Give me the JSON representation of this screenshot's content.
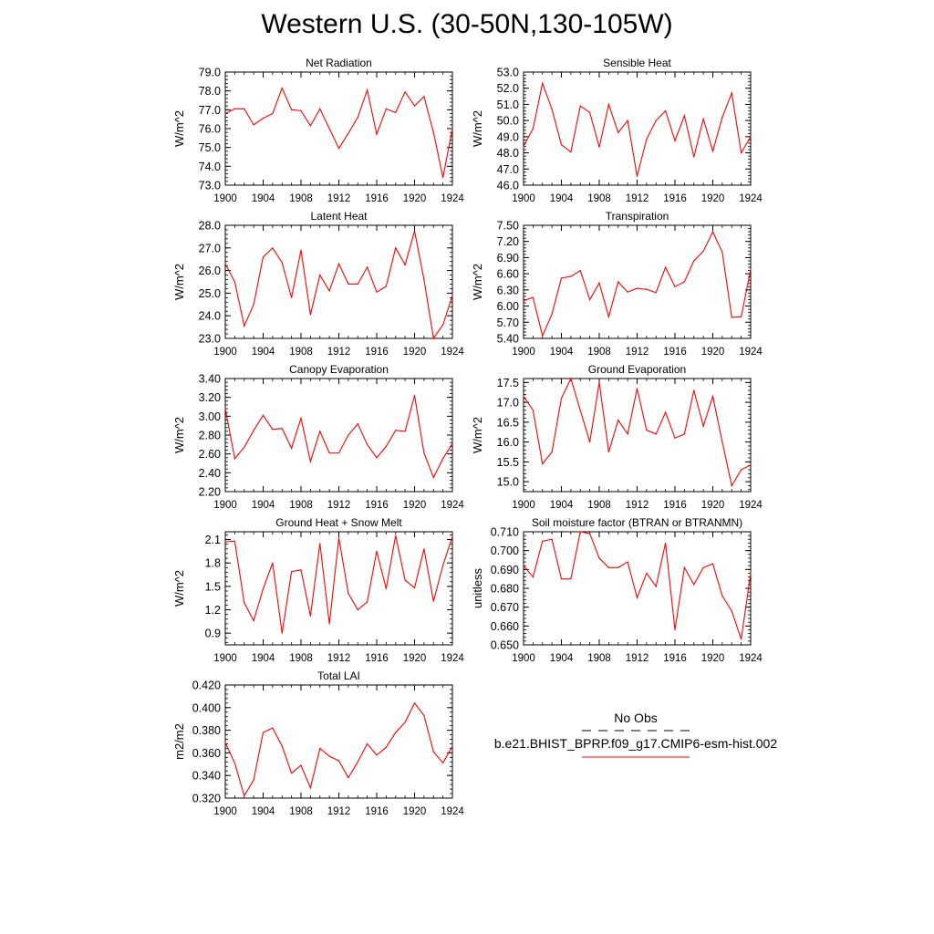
{
  "page": {
    "title": "Western U.S. (30-50N,130-105W)"
  },
  "legend": {
    "obs_label": "No Obs",
    "model_label": "b.e21.BHIST_BPRP.f09_g17.CMIP6-esm-hist.002",
    "obs_color": "#000000",
    "model_color": "#ff0000"
  },
  "chart_data": [
    {
      "type": "line",
      "title": "Net Radiation",
      "ylabel": "W/m^2",
      "xlim": [
        1900,
        1924
      ],
      "ylim": [
        73,
        79
      ],
      "xticks": [
        1900,
        1904,
        1908,
        1912,
        1916,
        1920,
        1924
      ],
      "xticklabels": [
        "1900",
        "1904",
        "1908",
        "1912",
        "1916",
        "1920",
        "1924"
      ],
      "yticks": [
        73,
        74,
        75,
        76,
        77,
        78,
        79
      ],
      "yticklabels": [
        "73.0",
        "74.0",
        "75.0",
        "76.0",
        "77.0",
        "78.0",
        "79.0"
      ],
      "series": [
        {
          "color": "#ff0000",
          "x": [
            1900,
            1901,
            1902,
            1903,
            1904,
            1905,
            1906,
            1907,
            1908,
            1909,
            1910,
            1911,
            1912,
            1913,
            1914,
            1915,
            1916,
            1917,
            1918,
            1919,
            1920,
            1921,
            1922,
            1923,
            1924
          ],
          "y": [
            76.8,
            77.05,
            77.05,
            76.2,
            76.55,
            76.8,
            78.15,
            77.0,
            76.95,
            76.15,
            77.05,
            76.0,
            74.95,
            75.75,
            76.6,
            78.05,
            75.7,
            77.05,
            76.85,
            77.95,
            77.2,
            77.7,
            75.8,
            73.4,
            76.0
          ]
        }
      ]
    },
    {
      "type": "line",
      "title": "Sensible Heat",
      "ylabel": "W/m^2",
      "xlim": [
        1900,
        1924
      ],
      "ylim": [
        46,
        53
      ],
      "xticks": [
        1900,
        1904,
        1908,
        1912,
        1916,
        1920,
        1924
      ],
      "xticklabels": [
        "1900",
        "1904",
        "1908",
        "1912",
        "1916",
        "1920",
        "1924"
      ],
      "yticks": [
        46,
        47,
        48,
        49,
        50,
        51,
        52,
        53
      ],
      "yticklabels": [
        "46.0",
        "47.0",
        "48.0",
        "49.0",
        "50.0",
        "51.0",
        "52.0",
        "53.0"
      ],
      "series": [
        {
          "color": "#ff0000",
          "x": [
            1900,
            1901,
            1902,
            1903,
            1904,
            1905,
            1906,
            1907,
            1908,
            1909,
            1910,
            1911,
            1912,
            1913,
            1914,
            1915,
            1916,
            1917,
            1918,
            1919,
            1920,
            1921,
            1922,
            1923,
            1924
          ],
          "y": [
            48.4,
            49.5,
            52.3,
            50.7,
            48.5,
            48.05,
            50.9,
            50.5,
            48.35,
            51.0,
            49.25,
            50.0,
            46.55,
            48.85,
            50.0,
            50.6,
            48.75,
            50.3,
            47.75,
            50.1,
            48.1,
            50.2,
            51.7,
            48.0,
            49.0
          ]
        }
      ]
    },
    {
      "type": "line",
      "title": "Latent Heat",
      "ylabel": "W/m^2",
      "xlim": [
        1900,
        1924
      ],
      "ylim": [
        23,
        28
      ],
      "xticks": [
        1900,
        1904,
        1908,
        1912,
        1916,
        1920,
        1924
      ],
      "xticklabels": [
        "1900",
        "1904",
        "1908",
        "1912",
        "1916",
        "1920",
        "1924"
      ],
      "yticks": [
        23,
        24,
        25,
        26,
        27,
        28
      ],
      "yticklabels": [
        "23.0",
        "24.0",
        "25.0",
        "26.0",
        "27.0",
        "28.0"
      ],
      "series": [
        {
          "color": "#ff0000",
          "x": [
            1900,
            1901,
            1902,
            1903,
            1904,
            1905,
            1906,
            1907,
            1908,
            1909,
            1910,
            1911,
            1912,
            1913,
            1914,
            1915,
            1916,
            1917,
            1918,
            1919,
            1920,
            1921,
            1922,
            1923,
            1924
          ],
          "y": [
            26.3,
            25.5,
            23.55,
            24.5,
            26.6,
            27.0,
            26.35,
            24.8,
            26.9,
            24.05,
            25.8,
            25.1,
            26.3,
            25.4,
            25.4,
            26.15,
            25.05,
            25.3,
            27.0,
            26.25,
            27.75,
            25.6,
            23.0,
            23.6,
            24.9
          ]
        }
      ]
    },
    {
      "type": "line",
      "title": "Transpiration",
      "ylabel": "W/m^2",
      "xlim": [
        1900,
        1924
      ],
      "ylim": [
        5.4,
        7.5
      ],
      "xticks": [
        1900,
        1904,
        1908,
        1912,
        1916,
        1920,
        1924
      ],
      "xticklabels": [
        "1900",
        "1904",
        "1908",
        "1912",
        "1916",
        "1920",
        "1924"
      ],
      "yticks": [
        5.4,
        5.7,
        6.0,
        6.3,
        6.6,
        6.9,
        7.2,
        7.5
      ],
      "yticklabels": [
        "5.40",
        "5.70",
        "6.00",
        "6.30",
        "6.60",
        "6.90",
        "7.20",
        "7.50"
      ],
      "series": [
        {
          "color": "#ff0000",
          "x": [
            1900,
            1901,
            1902,
            1903,
            1904,
            1905,
            1906,
            1907,
            1908,
            1909,
            1910,
            1911,
            1912,
            1913,
            1914,
            1915,
            1916,
            1917,
            1918,
            1919,
            1920,
            1921,
            1922,
            1923,
            1924
          ],
          "y": [
            6.1,
            6.16,
            5.45,
            5.85,
            6.52,
            6.55,
            6.66,
            6.12,
            6.43,
            5.8,
            6.45,
            6.26,
            6.33,
            6.31,
            6.25,
            6.72,
            6.36,
            6.45,
            6.84,
            7.02,
            7.38,
            7.0,
            5.79,
            5.8,
            6.68
          ]
        }
      ]
    },
    {
      "type": "line",
      "title": "Canopy Evaporation",
      "ylabel": "W/m^2",
      "xlim": [
        1900,
        1924
      ],
      "ylim": [
        2.2,
        3.4
      ],
      "xticks": [
        1900,
        1904,
        1908,
        1912,
        1916,
        1920,
        1924
      ],
      "xticklabels": [
        "1900",
        "1904",
        "1908",
        "1912",
        "1916",
        "1920",
        "1924"
      ],
      "yticks": [
        2.2,
        2.4,
        2.6,
        2.8,
        3.0,
        3.2,
        3.4
      ],
      "yticklabels": [
        "2.20",
        "2.40",
        "2.60",
        "2.80",
        "3.00",
        "3.20",
        "3.40"
      ],
      "series": [
        {
          "color": "#ff0000",
          "x": [
            1900,
            1901,
            1902,
            1903,
            1904,
            1905,
            1906,
            1907,
            1908,
            1909,
            1910,
            1911,
            1912,
            1913,
            1914,
            1915,
            1916,
            1917,
            1918,
            1919,
            1920,
            1921,
            1922,
            1923,
            1924
          ],
          "y": [
            3.08,
            2.55,
            2.67,
            2.85,
            3.01,
            2.86,
            2.87,
            2.66,
            2.98,
            2.52,
            2.84,
            2.61,
            2.61,
            2.8,
            2.92,
            2.7,
            2.56,
            2.68,
            2.85,
            2.84,
            3.22,
            2.61,
            2.35,
            2.55,
            2.71
          ]
        }
      ]
    },
    {
      "type": "line",
      "title": "Ground Evaporation",
      "ylabel": "W/m^2",
      "xlim": [
        1900,
        1924
      ],
      "ylim": [
        14.75,
        17.6
      ],
      "xticks": [
        1900,
        1904,
        1908,
        1912,
        1916,
        1920,
        1924
      ],
      "xticklabels": [
        "1900",
        "1904",
        "1908",
        "1912",
        "1916",
        "1920",
        "1924"
      ],
      "yticks": [
        15.0,
        15.5,
        16.0,
        16.5,
        17.0,
        17.5
      ],
      "yticklabels": [
        "15.0",
        "15.5",
        "16.0",
        "16.5",
        "17.0",
        "17.5"
      ],
      "series": [
        {
          "color": "#ff0000",
          "x": [
            1900,
            1901,
            1902,
            1903,
            1904,
            1905,
            1906,
            1907,
            1908,
            1909,
            1910,
            1911,
            1912,
            1913,
            1914,
            1915,
            1916,
            1917,
            1918,
            1919,
            1920,
            1921,
            1922,
            1923,
            1924
          ],
          "y": [
            17.15,
            16.8,
            15.45,
            15.75,
            17.1,
            17.6,
            16.8,
            16.0,
            17.5,
            15.75,
            16.55,
            16.2,
            17.35,
            16.3,
            16.2,
            16.75,
            16.1,
            16.2,
            17.3,
            16.4,
            17.15,
            16.0,
            14.9,
            15.3,
            15.42
          ]
        }
      ]
    },
    {
      "type": "line",
      "title": "Ground Heat + Snow Melt",
      "ylabel": "W/m^2",
      "xlim": [
        1900,
        1924
      ],
      "ylim": [
        0.75,
        2.2
      ],
      "xticks": [
        1900,
        1904,
        1908,
        1912,
        1916,
        1920,
        1924
      ],
      "xticklabels": [
        "1900",
        "1904",
        "1908",
        "1912",
        "1916",
        "1920",
        "1924"
      ],
      "yticks": [
        0.9,
        1.2,
        1.5,
        1.8,
        2.1
      ],
      "yticklabels": [
        "0.9",
        "1.2",
        "1.5",
        "1.8",
        "2.1"
      ],
      "series": [
        {
          "color": "#ff0000",
          "x": [
            1900,
            1901,
            1902,
            1903,
            1904,
            1905,
            1906,
            1907,
            1908,
            1909,
            1910,
            1911,
            1912,
            1913,
            1914,
            1915,
            1916,
            1917,
            1918,
            1919,
            1920,
            1921,
            1922,
            1923,
            1924
          ],
          "y": [
            2.07,
            2.08,
            1.29,
            1.06,
            1.47,
            1.8,
            0.9,
            1.69,
            1.71,
            1.12,
            2.05,
            1.02,
            2.12,
            1.41,
            1.2,
            1.3,
            1.95,
            1.47,
            2.15,
            1.58,
            1.48,
            1.98,
            1.31,
            1.77,
            2.14
          ]
        }
      ]
    },
    {
      "type": "line",
      "title": "Soil moisture factor (BTRAN or BTRANMN)",
      "ylabel": "unitless",
      "xlim": [
        1900,
        1924
      ],
      "ylim": [
        0.65,
        0.71
      ],
      "xticks": [
        1900,
        1904,
        1908,
        1912,
        1916,
        1920,
        1924
      ],
      "xticklabels": [
        "1900",
        "1904",
        "1908",
        "1912",
        "1916",
        "1920",
        "1924"
      ],
      "yticks": [
        0.65,
        0.66,
        0.67,
        0.68,
        0.69,
        0.7,
        0.71
      ],
      "yticklabels": [
        "0.650",
        "0.660",
        "0.670",
        "0.680",
        "0.690",
        "0.700",
        "0.710"
      ],
      "series": [
        {
          "color": "#ff0000",
          "x": [
            1900,
            1901,
            1902,
            1903,
            1904,
            1905,
            1906,
            1907,
            1908,
            1909,
            1910,
            1911,
            1912,
            1913,
            1914,
            1915,
            1916,
            1917,
            1918,
            1919,
            1920,
            1921,
            1922,
            1923,
            1924
          ],
          "y": [
            0.692,
            0.686,
            0.705,
            0.706,
            0.685,
            0.685,
            0.71,
            0.709,
            0.696,
            0.691,
            0.691,
            0.694,
            0.675,
            0.688,
            0.681,
            0.704,
            0.658,
            0.691,
            0.682,
            0.691,
            0.693,
            0.676,
            0.668,
            0.653,
            0.688
          ]
        }
      ]
    },
    {
      "type": "line",
      "title": "Total LAI",
      "ylabel": "m2/m2",
      "xlim": [
        1900,
        1924
      ],
      "ylim": [
        0.32,
        0.42
      ],
      "xticks": [
        1900,
        1904,
        1908,
        1912,
        1916,
        1920,
        1924
      ],
      "xticklabels": [
        "1900",
        "1904",
        "1908",
        "1912",
        "1916",
        "1920",
        "1924"
      ],
      "yticks": [
        0.32,
        0.34,
        0.36,
        0.38,
        0.4,
        0.42
      ],
      "yticklabels": [
        "0.320",
        "0.340",
        "0.360",
        "0.380",
        "0.400",
        "0.420"
      ],
      "series": [
        {
          "color": "#ff0000",
          "x": [
            1900,
            1901,
            1902,
            1903,
            1904,
            1905,
            1906,
            1907,
            1908,
            1909,
            1910,
            1911,
            1912,
            1913,
            1914,
            1915,
            1916,
            1917,
            1918,
            1919,
            1920,
            1921,
            1922,
            1923,
            1924
          ],
          "y": [
            0.369,
            0.351,
            0.322,
            0.336,
            0.378,
            0.382,
            0.366,
            0.342,
            0.349,
            0.329,
            0.364,
            0.357,
            0.353,
            0.338,
            0.352,
            0.368,
            0.358,
            0.365,
            0.378,
            0.387,
            0.404,
            0.393,
            0.361,
            0.351,
            0.366
          ]
        }
      ]
    }
  ]
}
